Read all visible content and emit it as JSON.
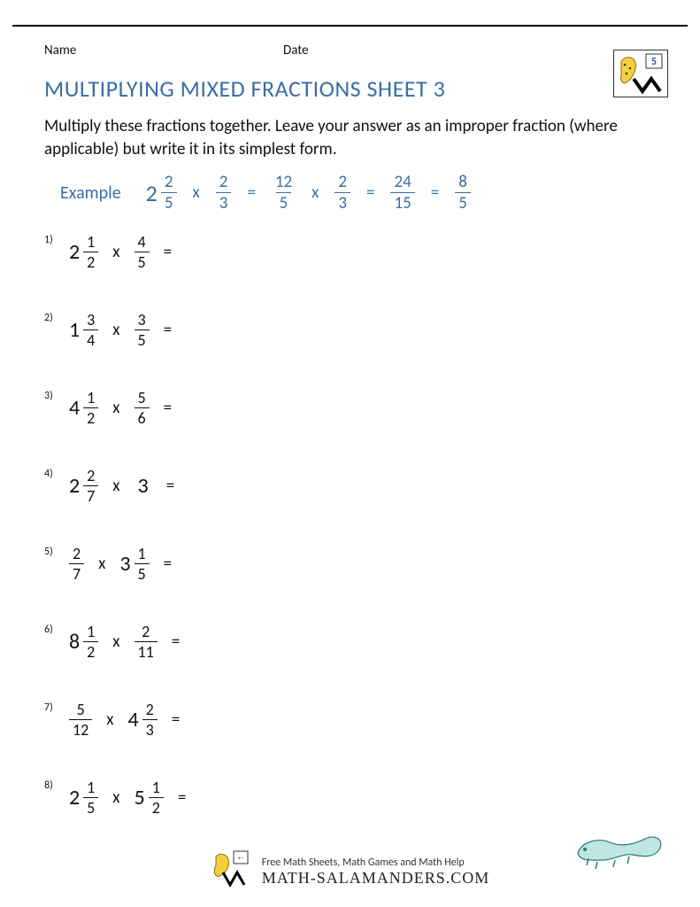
{
  "header": {
    "name_label": "Name",
    "date_label": "Date",
    "grade_badge": "5"
  },
  "title": "MULTIPLYING MIXED FRACTIONS SHEET 3",
  "instructions": "Multiply these fractions together. Leave your answer as an improper fraction (where applicable) but write it in its simplest form.",
  "colors": {
    "accent": "#3a6ea5",
    "text": "#111111",
    "background": "#ffffff"
  },
  "example": {
    "label": "Example",
    "steps": [
      {
        "type": "mixed",
        "whole": "2",
        "num": "2",
        "den": "5"
      },
      {
        "type": "op",
        "text": "x"
      },
      {
        "type": "frac",
        "num": "2",
        "den": "3"
      },
      {
        "type": "op",
        "text": "="
      },
      {
        "type": "frac",
        "num": "12",
        "den": "5"
      },
      {
        "type": "op",
        "text": "x"
      },
      {
        "type": "frac",
        "num": "2",
        "den": "3"
      },
      {
        "type": "op",
        "text": "="
      },
      {
        "type": "frac",
        "num": "24",
        "den": "15"
      },
      {
        "type": "op",
        "text": "="
      },
      {
        "type": "frac",
        "num": "8",
        "den": "5"
      }
    ]
  },
  "problems": [
    {
      "n": "1)",
      "terms": [
        {
          "type": "mixed",
          "whole": "2",
          "num": "1",
          "den": "2"
        },
        {
          "type": "op",
          "text": "x"
        },
        {
          "type": "frac",
          "num": "4",
          "den": "5"
        },
        {
          "type": "op",
          "text": "="
        }
      ]
    },
    {
      "n": "2)",
      "terms": [
        {
          "type": "mixed",
          "whole": "1",
          "num": "3",
          "den": "4"
        },
        {
          "type": "op",
          "text": "x"
        },
        {
          "type": "frac",
          "num": "3",
          "den": "5"
        },
        {
          "type": "op",
          "text": "="
        }
      ]
    },
    {
      "n": "3)",
      "terms": [
        {
          "type": "mixed",
          "whole": "4",
          "num": "1",
          "den": "2"
        },
        {
          "type": "op",
          "text": "x"
        },
        {
          "type": "frac",
          "num": "5",
          "den": "6"
        },
        {
          "type": "op",
          "text": "="
        }
      ]
    },
    {
      "n": "4)",
      "terms": [
        {
          "type": "mixed",
          "whole": "2",
          "num": "2",
          "den": "7"
        },
        {
          "type": "op",
          "text": "x"
        },
        {
          "type": "whole",
          "value": "3"
        },
        {
          "type": "op",
          "text": "="
        }
      ]
    },
    {
      "n": "5)",
      "terms": [
        {
          "type": "frac",
          "num": "2",
          "den": "7"
        },
        {
          "type": "op",
          "text": "x"
        },
        {
          "type": "mixed",
          "whole": "3",
          "num": "1",
          "den": "5"
        },
        {
          "type": "op",
          "text": "="
        }
      ]
    },
    {
      "n": "6)",
      "terms": [
        {
          "type": "mixed",
          "whole": "8",
          "num": "1",
          "den": "2"
        },
        {
          "type": "op",
          "text": "x"
        },
        {
          "type": "frac",
          "num": "2",
          "den": "11"
        },
        {
          "type": "op",
          "text": "="
        }
      ]
    },
    {
      "n": "7)",
      "terms": [
        {
          "type": "frac",
          "num": "5",
          "den": "12"
        },
        {
          "type": "op",
          "text": "x"
        },
        {
          "type": "mixed",
          "whole": "4",
          "num": "2",
          "den": "3"
        },
        {
          "type": "op",
          "text": "="
        }
      ]
    },
    {
      "n": "8)",
      "terms": [
        {
          "type": "mixed",
          "whole": "2",
          "num": "1",
          "den": "5"
        },
        {
          "type": "op",
          "text": "x"
        },
        {
          "type": "mixed",
          "whole": "5",
          "num": "1",
          "den": "2"
        },
        {
          "type": "op",
          "text": "="
        }
      ]
    }
  ],
  "footer": {
    "tagline": "Free Math Sheets, Math Games and Math Help",
    "site": "MATH-SALAMANDERS.COM"
  }
}
